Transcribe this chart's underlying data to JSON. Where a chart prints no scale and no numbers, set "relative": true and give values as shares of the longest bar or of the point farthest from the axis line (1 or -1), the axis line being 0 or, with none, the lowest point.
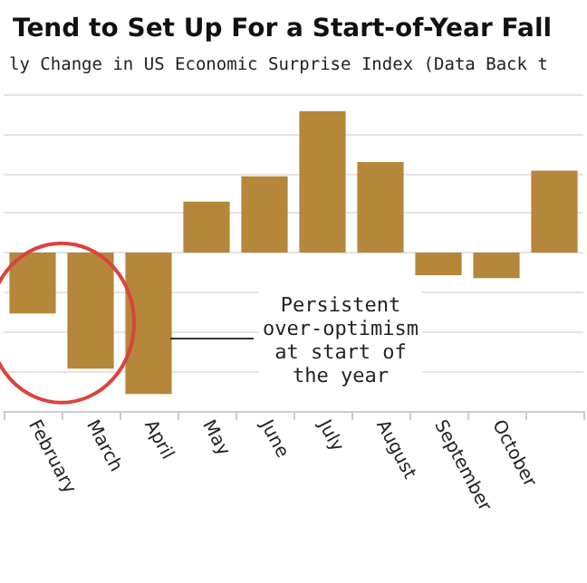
{
  "chart_data": {
    "type": "bar",
    "title": "Tend to Set Up For a Start-of-Year Fall",
    "subtitle": "ly Change in US Economic Surprise Index (Data Back t",
    "categories": [
      "February",
      "March",
      "April",
      "May",
      "June",
      "July",
      "August",
      "September",
      "October",
      null
    ],
    "values": [
      -0.43,
      -0.82,
      -1.0,
      0.36,
      0.54,
      1.0,
      0.64,
      -0.16,
      -0.18,
      0.58
    ],
    "color": "#b5873a",
    "relative": true,
    "grid": "y",
    "annotations": [
      "Persistent\nover-optimism\nat start of\nthe year"
    ]
  }
}
